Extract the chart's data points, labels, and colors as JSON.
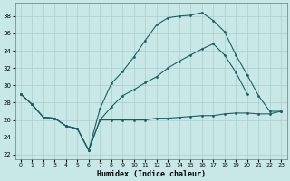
{
  "xlabel": "Humidex (Indice chaleur)",
  "bg_color": "#c8e8e8",
  "grid_color": "#aacccc",
  "line_color": "#1a6060",
  "xlim": [
    -0.5,
    23.5
  ],
  "ylim": [
    21.5,
    39.5
  ],
  "xticks": [
    0,
    1,
    2,
    3,
    4,
    5,
    6,
    7,
    8,
    9,
    10,
    11,
    12,
    13,
    14,
    15,
    16,
    17,
    18,
    19,
    20,
    21,
    22,
    23
  ],
  "yticks": [
    22,
    24,
    26,
    28,
    30,
    32,
    34,
    36,
    38
  ],
  "series": [
    {
      "x": [
        0,
        1,
        2,
        3,
        4,
        5,
        6,
        7,
        8,
        9,
        10,
        11,
        12,
        13,
        14,
        15,
        16,
        17,
        18,
        19,
        20,
        21,
        22,
        23
      ],
      "y": [
        29.0,
        27.8,
        26.3,
        26.2,
        25.3,
        25.0,
        22.5,
        26.0,
        26.0,
        26.0,
        26.0,
        26.0,
        26.2,
        26.2,
        26.3,
        26.4,
        26.5,
        26.5,
        26.7,
        26.8,
        26.8,
        26.7,
        26.7,
        27.0
      ]
    },
    {
      "x": [
        0,
        1,
        2,
        3,
        4,
        5,
        6,
        7,
        8,
        9,
        10,
        11,
        12,
        13,
        14,
        15,
        16,
        17,
        18,
        19,
        20,
        21,
        22,
        23
      ],
      "y": [
        29.0,
        27.8,
        26.3,
        26.2,
        25.3,
        25.0,
        22.5,
        27.3,
        30.2,
        31.6,
        33.3,
        35.2,
        37.0,
        37.8,
        38.0,
        38.1,
        38.4,
        37.5,
        36.2,
        33.5,
        31.2,
        28.8,
        27.0,
        27.0
      ]
    },
    {
      "x": [
        0,
        1,
        2,
        3,
        4,
        5,
        6,
        7,
        8,
        9,
        10,
        11,
        12,
        13,
        14,
        15,
        16,
        17,
        18,
        19,
        20,
        21,
        22,
        23
      ],
      "y": [
        29.0,
        27.8,
        26.3,
        26.2,
        25.3,
        25.0,
        22.5,
        26.0,
        27.5,
        28.8,
        29.5,
        30.3,
        31.0,
        32.0,
        32.8,
        33.5,
        34.2,
        34.8,
        33.5,
        31.5,
        29.0,
        null,
        null,
        null
      ]
    }
  ]
}
